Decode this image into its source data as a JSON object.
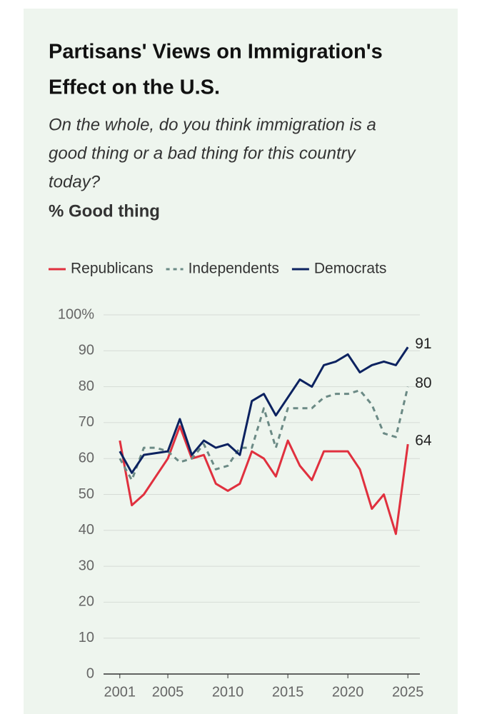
{
  "chart_data": {
    "type": "line",
    "title": [
      "Partisans' Views on Immigration's",
      "Effect on the U.S."
    ],
    "subtitle": [
      "On the whole, do you think immigration is a",
      "good thing or a bad thing for this country",
      "today?"
    ],
    "y_label": "% Good thing",
    "x": [
      2001,
      2002,
      2003,
      2004,
      2005,
      2006,
      2007,
      2008,
      2009,
      2010,
      2011,
      2012,
      2013,
      2014,
      2015,
      2016,
      2017,
      2018,
      2019,
      2020,
      2021,
      2022,
      2023,
      2024,
      2025
    ],
    "series": [
      {
        "name": "Republicans",
        "color": "#e0303e",
        "dash": false,
        "values": [
          65,
          47,
          50,
          55,
          60,
          69,
          60,
          61,
          53,
          51,
          53,
          62,
          60,
          55,
          65,
          58,
          54,
          62,
          62,
          62,
          57,
          46,
          50,
          39,
          64
        ]
      },
      {
        "name": "Independents",
        "color": "#6b8a85",
        "dash": true,
        "values": [
          60,
          54,
          63,
          63,
          62,
          59,
          60,
          64,
          57,
          58,
          63,
          63,
          74,
          63,
          74,
          74,
          74,
          77,
          78,
          78,
          79,
          75,
          67,
          66,
          80
        ]
      },
      {
        "name": "Democrats",
        "color": "#0c2260",
        "dash": false,
        "values": [
          62,
          56,
          61,
          61.5,
          62,
          71,
          61,
          65,
          63,
          64,
          61,
          76,
          78,
          72,
          77,
          82,
          80,
          86,
          87,
          89,
          84,
          86,
          87,
          86,
          91
        ]
      }
    ],
    "xlim": [
      2000,
      2026
    ],
    "xticks": [
      2001,
      2005,
      2010,
      2015,
      2020,
      2025
    ],
    "ylim": [
      0,
      100
    ],
    "yticks": [
      0,
      10,
      20,
      30,
      40,
      50,
      60,
      70,
      80,
      90,
      {
        "value": 100,
        "label": "100%"
      }
    ],
    "grid": true
  }
}
